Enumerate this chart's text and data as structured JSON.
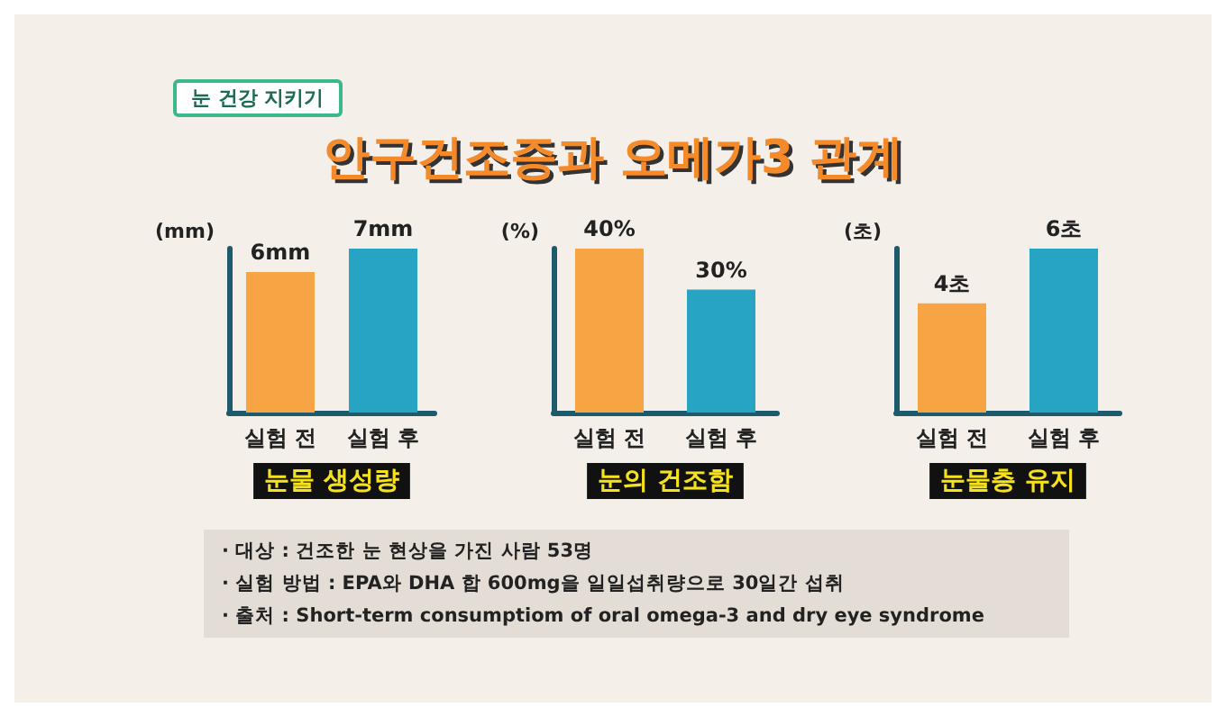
{
  "chart_data": [
    {
      "type": "bar",
      "title": "안구건조증과 오메가3 관계",
      "annotations": [
        "눈 건강 지키기",
        "· 대상 : 건조한 눈 현상을 가진 사람 53명",
        "· 실험 방법 : EPA와 DHA 합 600mg을 일일섭취량으로 30일간 섭취",
        "· 출처 : Short-term consumptiom of oral omega-3 and dry eye syndrome"
      ],
      "ylabel": "(mm)",
      "xlabel": "눈물 생성량",
      "categories": [
        "실험 전",
        "실험 후"
      ],
      "values": [
        6,
        7
      ],
      "colors": [
        "#f7a445",
        "#27a3c4"
      ],
      "value_labels": [
        "6mm",
        "7mm"
      ],
      "tick_labels": "x"
    },
    {
      "type": "bar",
      "ylabel": "(%)",
      "xlabel": "눈의 건조함",
      "categories": [
        "실험 전",
        "실험 후"
      ],
      "values": [
        40,
        30
      ],
      "colors": [
        "#f7a445",
        "#27a3c4"
      ],
      "value_labels": [
        "40%",
        "30%"
      ],
      "tick_labels": "x"
    },
    {
      "type": "bar",
      "ylabel": "(초)",
      "xlabel": "눈물층 유지",
      "categories": [
        "실험 전",
        "실험 후"
      ],
      "values": [
        4,
        6
      ],
      "colors": [
        "#f7a445",
        "#27a3c4"
      ],
      "value_labels": [
        "4초",
        "6초"
      ],
      "tick_labels": "x"
    }
  ]
}
